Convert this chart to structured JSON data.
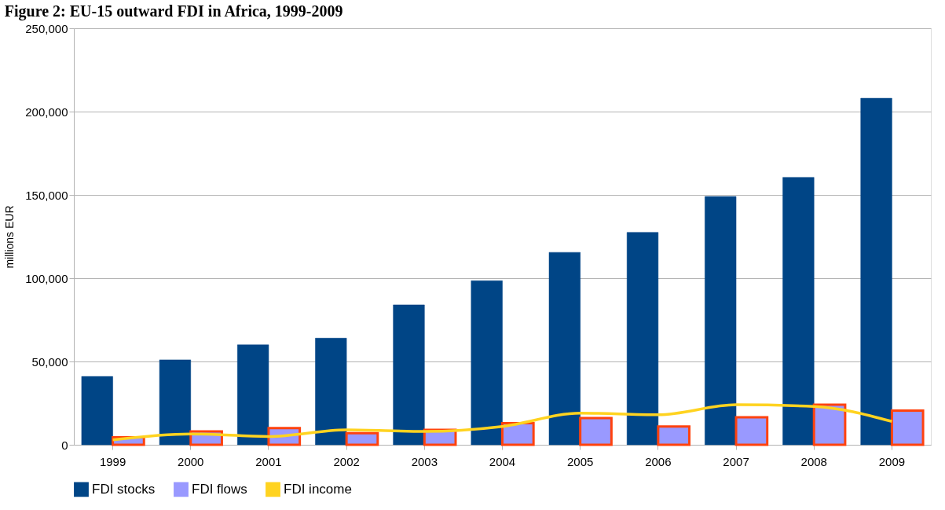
{
  "chart_data": {
    "type": "bar",
    "title": "Figure 2: EU-15 outward FDI in Africa, 1999-2009",
    "ylabel": "millions EUR",
    "categories": [
      "1999",
      "2000",
      "2001",
      "2002",
      "2003",
      "2004",
      "2005",
      "2006",
      "2007",
      "2008",
      "2009"
    ],
    "series": [
      {
        "name": "FDI stocks",
        "color": "#004586",
        "values": [
          41000,
          51000,
          60000,
          64000,
          84000,
          98500,
          115500,
          127500,
          149000,
          160500,
          208000
        ]
      },
      {
        "name": "FDI flows",
        "color": "#9999ff",
        "values": [
          4500,
          8000,
          10000,
          7000,
          9000,
          13000,
          16000,
          11000,
          16500,
          24000,
          20500
        ]
      },
      {
        "name": "FDI income",
        "type": "line",
        "color": "#ffd320",
        "values": [
          3000,
          6500,
          5000,
          9000,
          8000,
          11000,
          19000,
          18000,
          24000,
          23000,
          14000
        ]
      }
    ],
    "ylim": [
      0,
      250000
    ],
    "yticks": [
      0,
      {
        "value": 50000,
        "label": "50,000"
      },
      {
        "value": 100000,
        "label": "100,000"
      },
      {
        "value": 150000,
        "label": "150,000"
      },
      {
        "value": 200000,
        "label": "200,000"
      },
      {
        "value": 250000,
        "label": "250,000"
      }
    ],
    "grid": "y",
    "legend": "bottom"
  }
}
